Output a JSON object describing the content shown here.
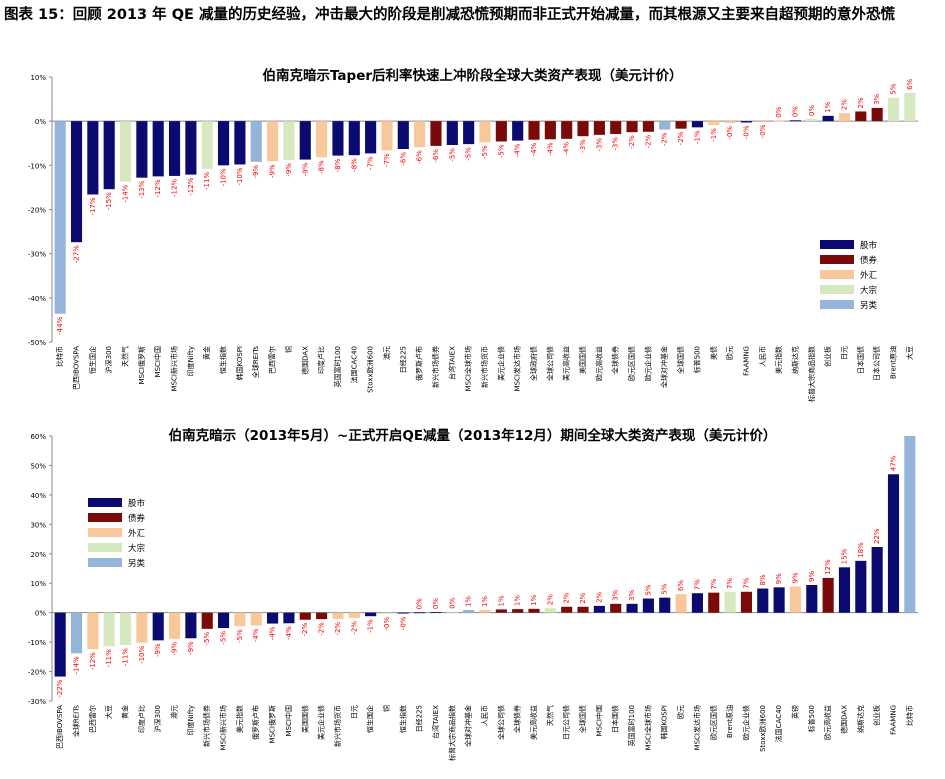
{
  "figure": {
    "title": "图表 15：回顾 2013 年 QE 减量的历史经验，冲击最大的阶段是削减恐慌预期而非正式开始减量，而其根源又主要来自超预期的意外恐慌"
  },
  "colors": {
    "股市": "#0a0a70",
    "债券": "#7a0a0a",
    "外汇": "#f9c89a",
    "大宗": "#d6e8c0",
    "另类": "#94b4da",
    "label": "#ff0000"
  },
  "chart_data": [
    {
      "type": "bar",
      "title": "伯南克暗示Taper后利率快速上冲阶段全球大类资产表现（美元计价）",
      "ylim": [
        -50,
        10
      ],
      "yticks": [
        10,
        0,
        -10,
        -20,
        -30,
        -40,
        -50
      ],
      "ytick_labels": [
        "10%",
        "0%",
        "-10%",
        "-20%",
        "-30%",
        "-40%",
        "-50%"
      ],
      "legend": [
        "股市",
        "债券",
        "外汇",
        "大宗",
        "另类"
      ],
      "legend_position": "right-middle",
      "categories": [
        "比特币",
        "巴西IBOVSPA",
        "恒生国企",
        "沪深300",
        "天然气",
        "MSCI俄罗斯",
        "MSCI中国",
        "MSCI新兴市场",
        "印度Nifty",
        "黄金",
        "恒生指数",
        "韩国KOSPI",
        "全球REITs",
        "巴西雷尔",
        "铜",
        "德国DAX",
        "印度卢比",
        "英国富时100",
        "法国CAC40",
        "Stoxx欧洲600",
        "澳元",
        "日经225",
        "俄罗斯卢布",
        "新兴市场债券",
        "台湾TAIEX",
        "MSCI全球市场",
        "新兴市场货币",
        "美元企业债",
        "MSCI发达市场",
        "全球政府债",
        "全球公司债",
        "美元高收益",
        "美国国债",
        "欧元高收益",
        "全球债券",
        "欧元区国债",
        "欧元企业债",
        "全球对冲基金",
        "全球国债",
        "标普500",
        "美债",
        "欧元",
        "FAAMNG",
        "人民币",
        "美元指数",
        "纳斯达克",
        "标普大宗商品指数",
        "创业板",
        "日元",
        "日本国债",
        "日本公司债",
        "Brent原油",
        "大豆"
      ],
      "classes": [
        "另类",
        "股市",
        "股市",
        "股市",
        "大宗",
        "股市",
        "股市",
        "股市",
        "股市",
        "大宗",
        "股市",
        "股市",
        "另类",
        "外汇",
        "大宗",
        "股市",
        "外汇",
        "股市",
        "股市",
        "股市",
        "外汇",
        "股市",
        "外汇",
        "债券",
        "股市",
        "股市",
        "外汇",
        "债券",
        "股市",
        "债券",
        "债券",
        "债券",
        "债券",
        "债券",
        "债券",
        "债券",
        "债券",
        "另类",
        "债券",
        "股市",
        "外汇",
        "外汇",
        "股市",
        "外汇",
        "外汇",
        "股市",
        "大宗",
        "股市",
        "外汇",
        "债券",
        "债券",
        "大宗",
        "大宗"
      ],
      "values": [
        -43.6,
        -27.4,
        -16.6,
        -15.4,
        -13.7,
        -12.8,
        -12.5,
        -12.4,
        -12.1,
        -10.8,
        -10.0,
        -9.8,
        -9.2,
        -9.1,
        -8.8,
        -8.7,
        -8.2,
        -7.8,
        -7.7,
        -7.3,
        -6.6,
        -6.3,
        -5.9,
        -5.6,
        -5.4,
        -5.2,
        -4.8,
        -4.6,
        -4.4,
        -4.2,
        -4.1,
        -4.0,
        -3.4,
        -3.1,
        -2.9,
        -2.5,
        -2.4,
        -1.9,
        -1.7,
        -1.4,
        -0.9,
        -0.4,
        -0.3,
        -0.1,
        0.1,
        0.2,
        0.5,
        1.2,
        1.8,
        2.2,
        3.0,
        5.3,
        6.4
      ],
      "data_labels": [
        "-44%",
        "-27%",
        "-17%",
        "-15%",
        "-14%",
        "-13%",
        "-12%",
        "-12%",
        "-12%",
        "-11%",
        "-10%",
        "-10%",
        "-9%",
        "-9%",
        "-9%",
        "-9%",
        "-8%",
        "-8%",
        "-8%",
        "-7%",
        "-7%",
        "-6%",
        "-6%",
        "-6%",
        "-5%",
        "-5%",
        "-5%",
        "-5%",
        "-4%",
        "-4%",
        "-4%",
        "-4%",
        "-3%",
        "-3%",
        "-3%",
        "-2%",
        "-2%",
        "-2%",
        "-2%",
        "-1%",
        "-1%",
        "-0%",
        "-0%",
        "-0%",
        "0%",
        "0%",
        "0%",
        "1%",
        "2%",
        "2%",
        "3%",
        "5%",
        "6%"
      ]
    },
    {
      "type": "bar",
      "title": "伯南克暗示（2013年5月）~正式开启QE减量（2013年12月）期间全球大类资产表现（美元计价）",
      "ylim": [
        -30,
        60
      ],
      "yticks": [
        60,
        50,
        40,
        30,
        20,
        10,
        0,
        -10,
        -20,
        -30
      ],
      "ytick_labels": [
        "60%",
        "50%",
        "40%",
        "30%",
        "20%",
        "10%",
        "0%",
        "-10%",
        "-20%",
        "-30%"
      ],
      "legend": [
        "股市",
        "债券",
        "外汇",
        "大宗",
        "另类"
      ],
      "legend_position": "left-upper",
      "categories": [
        "巴西IBOVSPA",
        "全球REITs",
        "巴西雷尔",
        "大豆",
        "黄金",
        "印度卢比",
        "沪深300",
        "澳元",
        "印度Nifty",
        "新兴市场债券",
        "MSCI新兴市场",
        "美元指数",
        "俄罗斯卢布",
        "MSCI俄罗斯",
        "MSCI中国",
        "美国国债",
        "美元企业债",
        "新兴市场货币",
        "日元",
        "恒生国企",
        "铜",
        "恒生指数",
        "日经225",
        "台湾TAIEX",
        "标普大宗商品指数",
        "全球对冲基金",
        "人民币",
        "全球公司债",
        "全球债券",
        "美元高收益",
        "天然气",
        "日元公司债",
        "全球国债",
        "MSCI中国",
        "日本国债",
        "英国富时100",
        "MSCI全球市场",
        "韩国KOSPI",
        "欧元",
        "MSCI发达市场",
        "欧元区国债",
        "Brent原油",
        "欧元企业债",
        "Stoxx欧洲600",
        "法国CAC40",
        "英镑",
        "标普500",
        "欧元高收益",
        "德国DAX",
        "纳斯达克",
        "创业板",
        "FAAMNG",
        "比特币"
      ],
      "classes": [
        "股市",
        "另类",
        "外汇",
        "大宗",
        "大宗",
        "外汇",
        "股市",
        "外汇",
        "股市",
        "债券",
        "股市",
        "外汇",
        "外汇",
        "股市",
        "股市",
        "债券",
        "债券",
        "外汇",
        "外汇",
        "股市",
        "大宗",
        "股市",
        "股市",
        "股市",
        "大宗",
        "另类",
        "外汇",
        "债券",
        "债券",
        "债券",
        "大宗",
        "债券",
        "债券",
        "股市",
        "债券",
        "股市",
        "股市",
        "股市",
        "外汇",
        "股市",
        "债券",
        "大宗",
        "债券",
        "股市",
        "股市",
        "外汇",
        "股市",
        "债券",
        "股市",
        "股市",
        "股市",
        "股市",
        "另类"
      ],
      "values": [
        -21.7,
        -13.8,
        -12.4,
        -11.4,
        -11.0,
        -10.2,
        -9.4,
        -8.9,
        -8.7,
        -5.5,
        -5.2,
        -4.6,
        -4.4,
        -3.7,
        -3.6,
        -2.4,
        -2.2,
        -2.1,
        -1.8,
        -1.2,
        -0.4,
        -0.3,
        0.1,
        0.2,
        0.3,
        0.9,
        0.9,
        1.1,
        1.2,
        1.3,
        1.5,
        2.0,
        2.0,
        2.3,
        3.0,
        3.0,
        4.8,
        5.1,
        6.3,
        6.6,
        6.8,
        7.0,
        7.1,
        8.2,
        8.6,
        8.9,
        9.4,
        11.8,
        15.4,
        17.6,
        22.3,
        47.0,
        60.0
      ],
      "data_labels": [
        "-22%",
        "-14%",
        "-12%",
        "-11%",
        "-11%",
        "-10%",
        "-9%",
        "-9%",
        "-9%",
        "-5%",
        "-5%",
        "-5%",
        "-4%",
        "-4%",
        "-4%",
        "-2%",
        "-2%",
        "-2%",
        "-2%",
        "-1%",
        "-0%",
        "-0%",
        "0%",
        "0%",
        "0%",
        "1%",
        "1%",
        "1%",
        "1%",
        "1%",
        "2%",
        "2%",
        "2%",
        "2%",
        "3%",
        "3%",
        "5%",
        "5%",
        "6%",
        "7%",
        "7%",
        "7%",
        "7%",
        "8%",
        "9%",
        "9%",
        "9%",
        "12%",
        "15%",
        "18%",
        "22%",
        "47%",
        ""
      ]
    }
  ]
}
